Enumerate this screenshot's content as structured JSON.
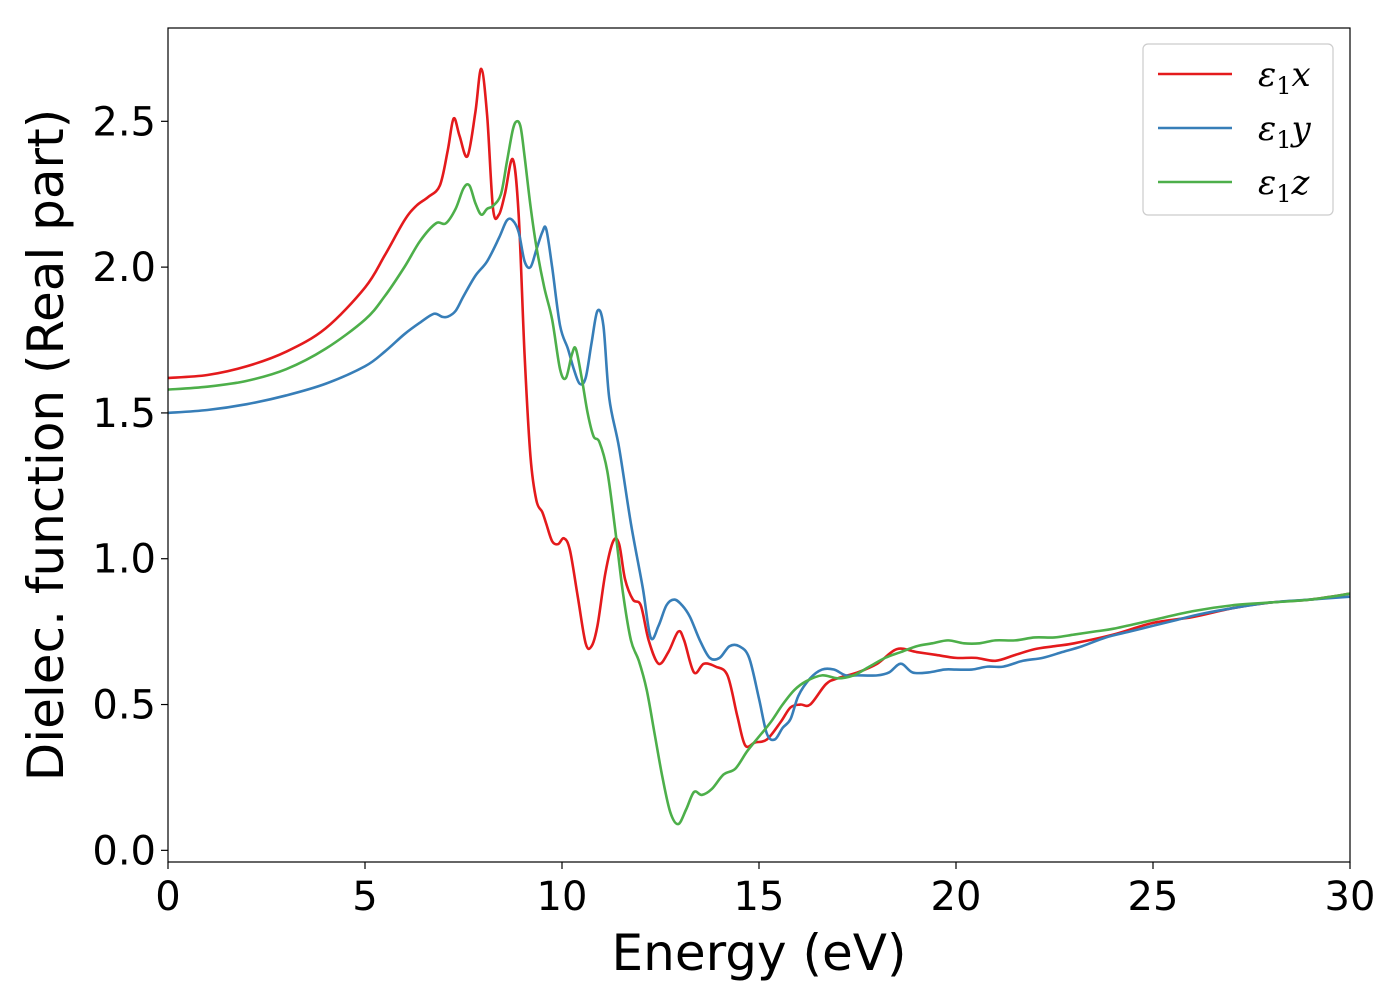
{
  "chart_data": {
    "type": "line",
    "title": "",
    "xlabel": "Energy (eV)",
    "ylabel": "Dielec. function (Real part)",
    "xlim": [
      0,
      30
    ],
    "ylim": [
      -0.04,
      2.82
    ],
    "xticks": [
      0,
      5,
      10,
      15,
      20,
      25,
      30
    ],
    "xtick_labels": [
      "0",
      "5",
      "10",
      "15",
      "20",
      "25",
      "30"
    ],
    "yticks": [
      0.0,
      0.5,
      1.0,
      1.5,
      2.0,
      2.5
    ],
    "ytick_labels": [
      "0.0",
      "0.5",
      "1.0",
      "1.5",
      "2.0",
      "2.5"
    ],
    "grid": false,
    "legend_position": "top-right",
    "series": [
      {
        "name": "ε1x",
        "legend_main": "ε",
        "legend_sub": "1",
        "legend_suffix": "x",
        "color": "#e41a1c",
        "x": [
          0,
          1,
          2,
          3,
          4,
          5,
          5.5,
          6,
          6.3,
          6.6,
          6.9,
          7.1,
          7.25,
          7.4,
          7.6,
          7.8,
          7.95,
          8.1,
          8.25,
          8.4,
          8.55,
          8.75,
          8.9,
          9.05,
          9.2,
          9.35,
          9.5,
          9.6,
          9.75,
          9.9,
          10.05,
          10.2,
          10.4,
          10.6,
          10.75,
          10.9,
          11.1,
          11.3,
          11.45,
          11.6,
          11.8,
          12.0,
          12.2,
          12.45,
          12.7,
          12.95,
          13.1,
          13.35,
          13.6,
          13.9,
          14.2,
          14.45,
          14.65,
          14.9,
          15.2,
          15.55,
          15.8,
          16.05,
          16.3,
          16.7,
          17.0,
          17.5,
          18.0,
          18.5,
          19.0,
          19.5,
          20.0,
          20.5,
          21.0,
          21.5,
          22.0,
          22.5,
          23.0,
          24.0,
          25.0,
          26.0,
          27.0,
          28.0,
          29.0,
          30.0
        ],
        "y": [
          1.62,
          1.63,
          1.66,
          1.71,
          1.79,
          1.93,
          2.04,
          2.16,
          2.21,
          2.24,
          2.28,
          2.4,
          2.51,
          2.45,
          2.38,
          2.53,
          2.68,
          2.52,
          2.2,
          2.18,
          2.25,
          2.37,
          2.18,
          1.7,
          1.35,
          1.2,
          1.16,
          1.12,
          1.06,
          1.05,
          1.07,
          1.03,
          0.87,
          0.71,
          0.7,
          0.77,
          0.95,
          1.06,
          1.05,
          0.93,
          0.86,
          0.84,
          0.72,
          0.64,
          0.68,
          0.75,
          0.72,
          0.61,
          0.64,
          0.63,
          0.6,
          0.46,
          0.36,
          0.37,
          0.38,
          0.44,
          0.49,
          0.5,
          0.5,
          0.57,
          0.59,
          0.61,
          0.64,
          0.69,
          0.68,
          0.67,
          0.66,
          0.66,
          0.65,
          0.67,
          0.69,
          0.7,
          0.71,
          0.74,
          0.78,
          0.8,
          0.83,
          0.85,
          0.86,
          0.88
        ]
      },
      {
        "name": "ε1y",
        "legend_main": "ε",
        "legend_sub": "1",
        "legend_suffix": "y",
        "color": "#377eb8",
        "x": [
          0,
          1,
          2,
          3,
          4,
          5,
          5.5,
          6,
          6.4,
          6.75,
          6.95,
          7.1,
          7.3,
          7.5,
          7.8,
          8.1,
          8.4,
          8.6,
          8.75,
          8.9,
          9.05,
          9.2,
          9.35,
          9.5,
          9.6,
          9.75,
          9.95,
          10.15,
          10.3,
          10.45,
          10.6,
          10.75,
          10.9,
          11.05,
          11.2,
          11.45,
          11.75,
          12.05,
          12.25,
          12.45,
          12.65,
          12.85,
          13.05,
          13.25,
          13.5,
          13.75,
          14.0,
          14.25,
          14.5,
          14.75,
          15.0,
          15.2,
          15.4,
          15.6,
          15.8,
          16.0,
          16.3,
          16.6,
          16.9,
          17.2,
          17.5,
          18.0,
          18.3,
          18.6,
          18.9,
          19.3,
          19.7,
          20.0,
          20.4,
          20.8,
          21.2,
          21.7,
          22.2,
          22.7,
          23.2,
          23.8,
          24.4,
          25.0,
          25.6,
          26.2,
          27.0,
          28.0,
          29.0,
          30.0
        ],
        "y": [
          1.5,
          1.51,
          1.53,
          1.56,
          1.6,
          1.66,
          1.71,
          1.77,
          1.81,
          1.84,
          1.83,
          1.83,
          1.85,
          1.9,
          1.97,
          2.02,
          2.1,
          2.16,
          2.16,
          2.12,
          2.02,
          2.0,
          2.06,
          2.12,
          2.13,
          2.0,
          1.8,
          1.72,
          1.65,
          1.6,
          1.62,
          1.74,
          1.85,
          1.8,
          1.55,
          1.38,
          1.12,
          0.9,
          0.73,
          0.77,
          0.84,
          0.86,
          0.84,
          0.8,
          0.72,
          0.66,
          0.66,
          0.7,
          0.7,
          0.66,
          0.52,
          0.4,
          0.38,
          0.42,
          0.45,
          0.53,
          0.59,
          0.62,
          0.62,
          0.6,
          0.6,
          0.6,
          0.61,
          0.64,
          0.61,
          0.61,
          0.62,
          0.62,
          0.62,
          0.63,
          0.63,
          0.65,
          0.66,
          0.68,
          0.7,
          0.73,
          0.75,
          0.77,
          0.79,
          0.81,
          0.83,
          0.85,
          0.86,
          0.87
        ]
      },
      {
        "name": "ε1z",
        "legend_main": "ε",
        "legend_sub": "1",
        "legend_suffix": "z",
        "color": "#4daf4a",
        "x": [
          0,
          1,
          2,
          3,
          4,
          5,
          5.5,
          6,
          6.4,
          6.8,
          7.05,
          7.3,
          7.5,
          7.65,
          7.8,
          7.95,
          8.1,
          8.25,
          8.45,
          8.6,
          8.75,
          8.85,
          8.95,
          9.05,
          9.2,
          9.35,
          9.55,
          9.75,
          9.95,
          10.1,
          10.25,
          10.35,
          10.5,
          10.65,
          10.8,
          10.95,
          11.15,
          11.35,
          11.55,
          11.75,
          11.95,
          12.15,
          12.35,
          12.55,
          12.75,
          12.95,
          13.15,
          13.35,
          13.55,
          13.8,
          14.1,
          14.4,
          14.7,
          15.0,
          15.3,
          15.6,
          15.9,
          16.2,
          16.6,
          17.0,
          17.4,
          17.8,
          18.2,
          18.6,
          19.0,
          19.4,
          19.8,
          20.2,
          20.6,
          21.0,
          21.5,
          22.0,
          22.5,
          23.0,
          23.5,
          24.0,
          25.0,
          26.0,
          27.0,
          28.0,
          29.0,
          30.0
        ],
        "y": [
          1.58,
          1.59,
          1.61,
          1.65,
          1.72,
          1.82,
          1.9,
          2.0,
          2.09,
          2.15,
          2.15,
          2.2,
          2.27,
          2.28,
          2.22,
          2.18,
          2.2,
          2.21,
          2.25,
          2.36,
          2.47,
          2.5,
          2.48,
          2.38,
          2.21,
          2.07,
          1.93,
          1.82,
          1.65,
          1.62,
          1.7,
          1.72,
          1.62,
          1.5,
          1.42,
          1.4,
          1.3,
          1.1,
          0.88,
          0.72,
          0.65,
          0.55,
          0.4,
          0.25,
          0.13,
          0.09,
          0.14,
          0.2,
          0.19,
          0.21,
          0.26,
          0.28,
          0.34,
          0.39,
          0.44,
          0.5,
          0.55,
          0.58,
          0.6,
          0.59,
          0.6,
          0.63,
          0.66,
          0.68,
          0.7,
          0.71,
          0.72,
          0.71,
          0.71,
          0.72,
          0.72,
          0.73,
          0.73,
          0.74,
          0.75,
          0.76,
          0.79,
          0.82,
          0.84,
          0.85,
          0.86,
          0.88
        ]
      }
    ]
  }
}
